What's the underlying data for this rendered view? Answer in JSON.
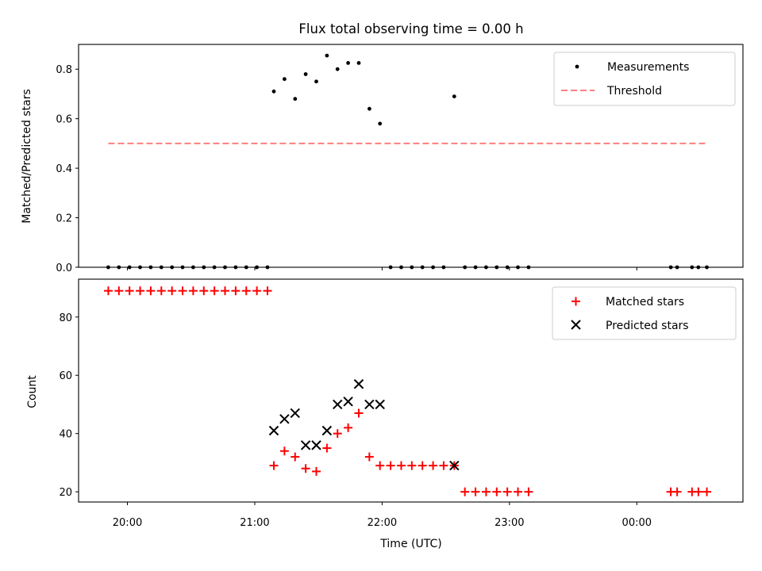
{
  "chart_data": [
    {
      "type": "scatter",
      "title": "Flux total observing time = 0.00 h",
      "xlabel": "",
      "ylabel": "Matched/Predicted stars",
      "ylim": [
        0,
        0.9
      ],
      "yticks": [
        0.0,
        0.2,
        0.4,
        0.6,
        0.8
      ],
      "ytick_labels": [
        "0.0",
        "0.2",
        "0.4",
        "0.6",
        "0.8"
      ],
      "xlim": [
        "19:37",
        "00:50"
      ],
      "legend_position": "top-right",
      "series": [
        {
          "name": "Measurements",
          "marker": "dot",
          "color": "#000000",
          "x": [
            "19:51",
            "19:56",
            "20:01",
            "20:06",
            "20:11",
            "20:16",
            "20:21",
            "20:26",
            "20:31",
            "20:36",
            "20:41",
            "20:46",
            "20:51",
            "20:56",
            "21:01",
            "21:06",
            "21:09",
            "21:14",
            "21:19",
            "21:24",
            "21:29",
            "21:34",
            "21:39",
            "21:44",
            "21:49",
            "21:54",
            "21:59",
            "22:04",
            "22:09",
            "22:14",
            "22:19",
            "22:24",
            "22:29",
            "22:34",
            "22:39",
            "22:44",
            "22:49",
            "22:54",
            "22:59",
            "23:04",
            "23:09",
            "00:16",
            "00:19",
            "00:26",
            "00:29",
            "00:33"
          ],
          "y": [
            0,
            0,
            0,
            0,
            0,
            0,
            0,
            0,
            0,
            0,
            0,
            0,
            0,
            0,
            0,
            0,
            0.71,
            0.76,
            0.68,
            0.78,
            0.75,
            0.855,
            0.8,
            0.825,
            0.825,
            0.64,
            0.58,
            0,
            0,
            0,
            0,
            0,
            0,
            0.69,
            0,
            0,
            0,
            0,
            0,
            0,
            0,
            0,
            0,
            0,
            0,
            0
          ]
        },
        {
          "name": "Threshold",
          "line_style": "dashed",
          "color": "#ff7f7f",
          "x": [
            "19:51",
            "00:33"
          ],
          "y": [
            0.5,
            0.5
          ]
        }
      ]
    },
    {
      "type": "scatter",
      "title": "",
      "xlabel": "Time (UTC)",
      "ylabel": "Count",
      "ylim": [
        16.5,
        93
      ],
      "yticks": [
        20,
        40,
        60,
        80
      ],
      "ytick_labels": [
        "20",
        "40",
        "60",
        "80"
      ],
      "xlim": [
        "19:37",
        "00:50"
      ],
      "xticks": [
        "20:00",
        "21:00",
        "22:00",
        "23:00",
        "00:00"
      ],
      "legend_position": "top-right",
      "series": [
        {
          "name": "Matched stars",
          "marker": "plus",
          "color": "#ff0000",
          "x": [
            "19:51",
            "19:56",
            "20:01",
            "20:06",
            "20:11",
            "20:16",
            "20:21",
            "20:26",
            "20:31",
            "20:36",
            "20:41",
            "20:46",
            "20:51",
            "20:56",
            "21:01",
            "21:06",
            "21:09",
            "21:14",
            "21:19",
            "21:24",
            "21:29",
            "21:34",
            "21:39",
            "21:44",
            "21:49",
            "21:54",
            "21:59",
            "22:04",
            "22:09",
            "22:14",
            "22:19",
            "22:24",
            "22:29",
            "22:34",
            "22:39",
            "22:44",
            "22:49",
            "22:54",
            "22:59",
            "23:04",
            "23:09",
            "00:16",
            "00:19",
            "00:26",
            "00:29",
            "00:33"
          ],
          "y": [
            89,
            89,
            89,
            89,
            89,
            89,
            89,
            89,
            89,
            89,
            89,
            89,
            89,
            89,
            89,
            89,
            29,
            34,
            32,
            28,
            27,
            35,
            40,
            42,
            47,
            32,
            29,
            29,
            29,
            29,
            29,
            29,
            29,
            29,
            20,
            20,
            20,
            20,
            20,
            20,
            20,
            20,
            20,
            20,
            20,
            20
          ]
        },
        {
          "name": "Predicted stars",
          "marker": "x",
          "color": "#000000",
          "x": [
            "21:09",
            "21:14",
            "21:19",
            "21:24",
            "21:29",
            "21:34",
            "21:39",
            "21:44",
            "21:49",
            "21:54",
            "21:59",
            "22:34"
          ],
          "y": [
            41,
            45,
            47,
            36,
            36,
            41,
            50,
            51,
            57,
            50,
            50,
            29
          ]
        }
      ]
    }
  ]
}
